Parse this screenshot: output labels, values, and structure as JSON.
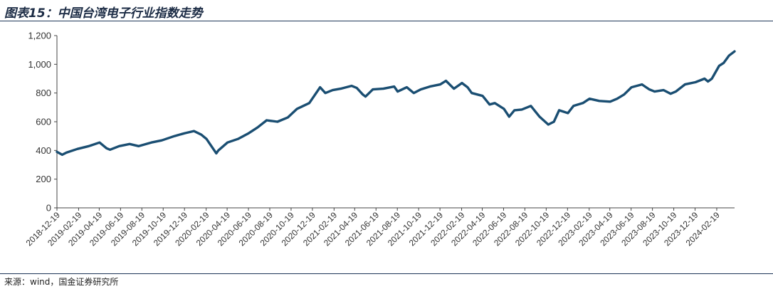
{
  "figure": {
    "title": "图表15：中国台湾电子行业指数走势",
    "source": "来源：wind，国金证券研究所"
  },
  "chart_data": {
    "type": "line",
    "title": "",
    "xlabel": "",
    "ylabel": "",
    "ylim": [
      0,
      1200
    ],
    "yticks": [
      0,
      200,
      400,
      600,
      800,
      1000,
      1200
    ],
    "ytick_labels": [
      "0",
      "200",
      "400",
      "600",
      "800",
      "1,000",
      "1,200"
    ],
    "xlim": [
      "2018-12-19",
      "2024-04-10"
    ],
    "xtick_labels": [
      "2018-12-19",
      "2019-02-19",
      "2019-04-19",
      "2019-06-19",
      "2019-08-19",
      "2019-10-19",
      "2019-12-19",
      "2020-02-19",
      "2020-04-19",
      "2020-06-19",
      "2020-08-19",
      "2020-10-19",
      "2020-12-19",
      "2021-02-19",
      "2021-04-19",
      "2021-06-19",
      "2021-08-19",
      "2021-10-19",
      "2021-12-19",
      "2022-02-19",
      "2022-04-19",
      "2022-06-19",
      "2022-08-19",
      "2022-10-19",
      "2022-12-19",
      "2023-02-19",
      "2023-04-19",
      "2023-06-19",
      "2023-08-19",
      "2023-10-19",
      "2023-12-19",
      "2024-02-19"
    ],
    "grid": false,
    "line_color": "#1a4e72",
    "series": [
      {
        "name": "",
        "x": [
          "2018-12-19",
          "2019-01-03",
          "2019-01-15",
          "2019-02-15",
          "2019-03-20",
          "2019-04-20",
          "2019-05-10",
          "2019-05-20",
          "2019-06-15",
          "2019-07-15",
          "2019-08-10",
          "2019-09-15",
          "2019-10-15",
          "2019-11-20",
          "2019-12-20",
          "2020-01-15",
          "2020-02-05",
          "2020-02-20",
          "2020-03-19",
          "2020-03-25",
          "2020-04-20",
          "2020-05-20",
          "2020-06-20",
          "2020-07-15",
          "2020-08-10",
          "2020-09-10",
          "2020-10-10",
          "2020-11-05",
          "2020-12-10",
          "2021-01-10",
          "2021-01-25",
          "2021-02-15",
          "2021-03-10",
          "2021-04-10",
          "2021-04-25",
          "2021-05-12",
          "2021-05-20",
          "2021-06-10",
          "2021-07-10",
          "2021-08-10",
          "2021-08-20",
          "2021-09-15",
          "2021-10-05",
          "2021-10-25",
          "2021-11-20",
          "2021-12-20",
          "2022-01-05",
          "2022-01-28",
          "2022-02-20",
          "2022-03-08",
          "2022-03-20",
          "2022-04-20",
          "2022-05-10",
          "2022-05-25",
          "2022-06-20",
          "2022-07-05",
          "2022-07-20",
          "2022-08-10",
          "2022-09-05",
          "2022-09-30",
          "2022-10-25",
          "2022-11-10",
          "2022-11-25",
          "2022-12-20",
          "2023-01-05",
          "2023-02-01",
          "2023-02-20",
          "2023-03-20",
          "2023-04-20",
          "2023-05-10",
          "2023-05-30",
          "2023-06-20",
          "2023-07-20",
          "2023-08-10",
          "2023-08-25",
          "2023-09-20",
          "2023-10-10",
          "2023-10-25",
          "2023-11-20",
          "2023-12-20",
          "2024-01-15",
          "2024-01-25",
          "2024-02-05",
          "2024-02-26",
          "2024-03-10",
          "2024-03-25",
          "2024-04-10"
        ],
        "y": [
          390,
          370,
          385,
          410,
          430,
          455,
          415,
          405,
          430,
          445,
          430,
          455,
          470,
          500,
          520,
          535,
          510,
          480,
          380,
          400,
          455,
          480,
          520,
          560,
          610,
          600,
          630,
          690,
          730,
          840,
          800,
          820,
          830,
          850,
          835,
          790,
          775,
          825,
          830,
          845,
          810,
          840,
          800,
          825,
          845,
          860,
          885,
          830,
          870,
          840,
          800,
          780,
          720,
          730,
          690,
          635,
          680,
          685,
          710,
          635,
          580,
          600,
          680,
          660,
          710,
          730,
          760,
          745,
          740,
          760,
          790,
          840,
          860,
          825,
          810,
          820,
          795,
          810,
          860,
          875,
          900,
          880,
          900,
          990,
          1010,
          1060,
          1090
        ]
      }
    ]
  }
}
